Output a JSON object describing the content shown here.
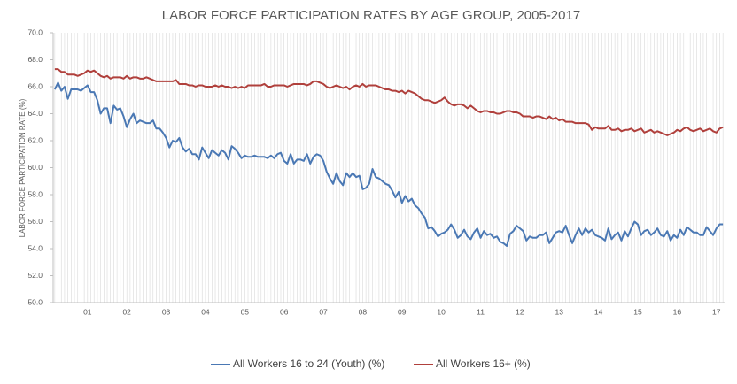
{
  "chart_data": {
    "type": "line",
    "title": "LABOR FORCE PARTICIPATION  RATES BY AGE GROUP, 2005-2017",
    "y_label": "LABOR FORCE PARTICIPATION  RATE (%)",
    "categories": [
      null,
      null,
      null,
      null,
      null,
      null,
      null,
      null,
      null,
      null,
      "01",
      null,
      null,
      null,
      null,
      null,
      null,
      null,
      null,
      null,
      null,
      null,
      "02",
      null,
      null,
      null,
      null,
      null,
      null,
      null,
      null,
      null,
      null,
      null,
      "03",
      null,
      null,
      null,
      null,
      null,
      null,
      null,
      null,
      null,
      null,
      null,
      "04",
      null,
      null,
      null,
      null,
      null,
      null,
      null,
      null,
      null,
      null,
      null,
      "05",
      null,
      null,
      null,
      null,
      null,
      null,
      null,
      null,
      null,
      null,
      null,
      "06",
      null,
      null,
      null,
      null,
      null,
      null,
      null,
      null,
      null,
      null,
      null,
      "07",
      null,
      null,
      null,
      null,
      null,
      null,
      null,
      null,
      null,
      null,
      null,
      "08",
      null,
      null,
      null,
      null,
      null,
      null,
      null,
      null,
      null,
      null,
      null,
      "09",
      null,
      null,
      null,
      null,
      null,
      null,
      null,
      null,
      null,
      null,
      null,
      "10",
      null,
      null,
      null,
      null,
      null,
      null,
      null,
      null,
      null,
      null,
      null,
      "11",
      null,
      null,
      null,
      null,
      null,
      null,
      null,
      null,
      null,
      null,
      null,
      "12",
      null,
      null,
      null,
      null,
      null,
      null,
      null,
      null,
      null,
      null,
      null,
      "13",
      null,
      null,
      null,
      null,
      null,
      null,
      null,
      null,
      null,
      null,
      null,
      "14",
      null,
      null,
      null,
      null,
      null,
      null,
      null,
      null,
      null,
      null,
      null,
      "15",
      null,
      null,
      null,
      null,
      null,
      null,
      null,
      null,
      null,
      null,
      null,
      "16",
      null,
      null,
      null,
      null,
      null,
      null,
      null,
      null,
      null,
      null,
      null,
      "17",
      null,
      null
    ],
    "series": [
      {
        "name": "All Workers 16 to 24 (Youth) (%)",
        "color": "#4a78b4",
        "values": [
          65.8,
          66.3,
          65.7,
          66.0,
          65.1,
          65.8,
          65.8,
          65.8,
          65.7,
          65.9,
          66.1,
          65.6,
          65.6,
          65.0,
          64.0,
          64.4,
          64.4,
          63.3,
          64.6,
          64.3,
          64.4,
          63.8,
          63.0,
          63.6,
          64.0,
          63.3,
          63.5,
          63.4,
          63.3,
          63.3,
          63.5,
          62.9,
          62.9,
          62.6,
          62.2,
          61.5,
          62.0,
          61.9,
          62.2,
          61.5,
          61.2,
          61.4,
          61.0,
          61.0,
          60.6,
          61.5,
          61.1,
          60.7,
          61.3,
          61.1,
          60.9,
          61.3,
          61.1,
          60.6,
          61.6,
          61.4,
          61.1,
          60.7,
          60.9,
          60.8,
          60.8,
          60.9,
          60.8,
          60.8,
          60.8,
          60.7,
          60.9,
          60.7,
          61.0,
          61.1,
          60.5,
          60.3,
          61.0,
          60.3,
          60.6,
          60.6,
          60.5,
          61.0,
          60.3,
          60.8,
          61.0,
          60.9,
          60.5,
          59.7,
          59.2,
          58.8,
          59.6,
          59.0,
          58.7,
          59.6,
          59.3,
          59.6,
          59.3,
          59.4,
          58.4,
          58.5,
          58.8,
          59.9,
          59.3,
          59.2,
          59.0,
          58.8,
          58.7,
          58.3,
          57.8,
          58.2,
          57.4,
          57.9,
          57.5,
          57.7,
          57.2,
          57.0,
          56.6,
          56.3,
          55.5,
          55.6,
          55.3,
          54.9,
          55.1,
          55.2,
          55.4,
          55.8,
          55.4,
          54.8,
          55.0,
          55.4,
          54.9,
          54.7,
          55.2,
          55.5,
          54.8,
          55.3,
          55.0,
          55.1,
          54.8,
          54.9,
          54.5,
          54.4,
          54.2,
          55.1,
          55.3,
          55.7,
          55.5,
          55.3,
          54.6,
          54.9,
          54.8,
          54.8,
          55.0,
          55.0,
          55.2,
          54.4,
          54.8,
          55.2,
          55.3,
          55.2,
          55.7,
          55.0,
          54.4,
          55.0,
          55.5,
          55.0,
          55.5,
          55.2,
          55.4,
          55.0,
          54.9,
          54.8,
          54.6,
          55.5,
          54.7,
          55.0,
          55.2,
          54.6,
          55.3,
          54.9,
          55.5,
          56.0,
          55.8,
          55.0,
          55.3,
          55.4,
          55.0,
          55.2,
          55.5,
          55.0,
          54.9,
          55.3,
          54.6,
          55.0,
          54.8,
          55.4,
          55.0,
          55.6,
          55.4,
          55.2,
          55.2,
          55.0,
          55.0,
          55.6,
          55.3,
          55.0,
          55.5,
          55.8,
          55.8
        ]
      },
      {
        "name": "All Workers 16+ (%)",
        "color": "#b0403c",
        "values": [
          67.3,
          67.3,
          67.1,
          67.1,
          66.9,
          66.9,
          66.9,
          66.8,
          66.9,
          67.0,
          67.2,
          67.1,
          67.2,
          67.0,
          66.8,
          66.7,
          66.8,
          66.6,
          66.7,
          66.7,
          66.7,
          66.6,
          66.8,
          66.6,
          66.7,
          66.7,
          66.6,
          66.6,
          66.7,
          66.6,
          66.5,
          66.4,
          66.4,
          66.4,
          66.4,
          66.4,
          66.4,
          66.5,
          66.2,
          66.2,
          66.2,
          66.1,
          66.1,
          66.0,
          66.1,
          66.1,
          66.0,
          66.0,
          66.0,
          66.1,
          66.0,
          66.1,
          66.0,
          66.0,
          65.9,
          66.0,
          65.9,
          66.0,
          65.9,
          66.1,
          66.1,
          66.1,
          66.1,
          66.1,
          66.2,
          66.0,
          66.0,
          66.1,
          66.1,
          66.1,
          66.1,
          66.0,
          66.1,
          66.2,
          66.2,
          66.2,
          66.2,
          66.1,
          66.2,
          66.4,
          66.4,
          66.3,
          66.2,
          66.0,
          65.9,
          66.0,
          66.1,
          66.0,
          65.9,
          66.0,
          65.8,
          66.0,
          66.1,
          66.0,
          66.2,
          66.0,
          66.1,
          66.1,
          66.1,
          66.0,
          65.9,
          65.8,
          65.8,
          65.7,
          65.7,
          65.6,
          65.7,
          65.5,
          65.7,
          65.6,
          65.5,
          65.3,
          65.1,
          65.0,
          65.0,
          64.9,
          64.8,
          64.9,
          65.0,
          65.2,
          64.9,
          64.7,
          64.6,
          64.7,
          64.7,
          64.6,
          64.4,
          64.6,
          64.4,
          64.2,
          64.1,
          64.2,
          64.2,
          64.1,
          64.1,
          64.0,
          64.0,
          64.1,
          64.2,
          64.2,
          64.1,
          64.1,
          64.0,
          63.8,
          63.8,
          63.8,
          63.7,
          63.8,
          63.8,
          63.7,
          63.6,
          63.8,
          63.6,
          63.7,
          63.5,
          63.6,
          63.4,
          63.4,
          63.4,
          63.3,
          63.3,
          63.3,
          63.3,
          63.2,
          62.8,
          63.0,
          62.9,
          62.9,
          62.9,
          63.1,
          62.8,
          62.8,
          62.9,
          62.7,
          62.8,
          62.8,
          62.9,
          62.7,
          62.8,
          62.9,
          62.6,
          62.7,
          62.8,
          62.6,
          62.7,
          62.6,
          62.5,
          62.4,
          62.5,
          62.6,
          62.8,
          62.7,
          62.9,
          63.0,
          62.8,
          62.7,
          62.8,
          62.9,
          62.7,
          62.8,
          62.9,
          62.7,
          62.6,
          62.9,
          63.0
        ]
      }
    ],
    "ylim": [
      50,
      70
    ],
    "yticks": [
      {
        "value": 50,
        "label": "50.0"
      },
      {
        "value": 52,
        "label": "52.0"
      },
      {
        "value": 54,
        "label": "54.0"
      },
      {
        "value": 56,
        "label": "56.0"
      },
      {
        "value": 58,
        "label": "58.0"
      },
      {
        "value": 60,
        "label": "60.0"
      },
      {
        "value": 62,
        "label": "62.0"
      },
      {
        "value": 64,
        "label": "64.0"
      },
      {
        "value": 66,
        "label": "66.0"
      },
      {
        "value": 68,
        "label": "68.0"
      },
      {
        "value": 70,
        "label": "70.0"
      }
    ],
    "grid": true,
    "legend": "bottom"
  }
}
